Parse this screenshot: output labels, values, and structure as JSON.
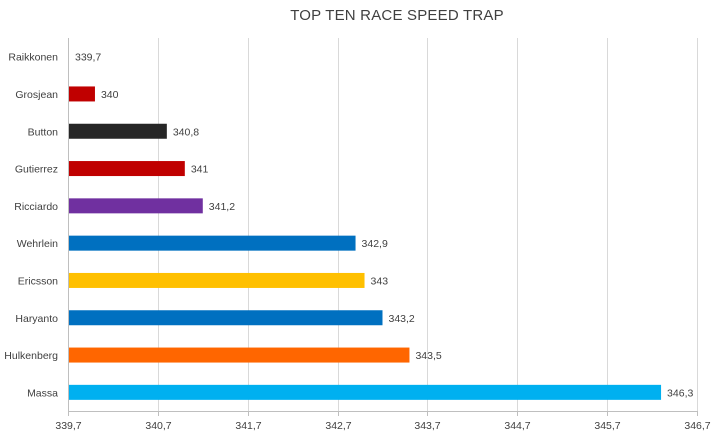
{
  "chart_data": {
    "type": "bar",
    "orientation": "horizontal",
    "title": "TOP TEN RACE SPEED TRAP",
    "xlabel": "",
    "ylabel": "",
    "categories": [
      "Raikkonen",
      "Grosjean",
      "Button",
      "Gutierrez",
      "Ricciardo",
      "Wehrlein",
      "Ericsson",
      "Haryanto",
      "Hulkenberg",
      "Massa"
    ],
    "values": [
      339.7,
      340,
      340.8,
      341,
      341.2,
      342.9,
      343,
      343.2,
      343.5,
      346.3
    ],
    "value_labels": [
      "339,7",
      "340",
      "340,8",
      "341",
      "341,2",
      "342,9",
      "343",
      "343,2",
      "343,5",
      "346,3"
    ],
    "bar_colors": [
      "#c00000",
      "#c00000",
      "#262626",
      "#c00000",
      "#7030a0",
      "#0070c0",
      "#ffc000",
      "#0070c0",
      "#ff6600",
      "#00b0f0"
    ],
    "xlim": [
      339.7,
      346.7
    ],
    "x_ticks": [
      339.7,
      340.7,
      341.7,
      342.7,
      343.7,
      344.7,
      345.7,
      346.7
    ],
    "x_tick_labels": [
      "339,7",
      "340,7",
      "341,7",
      "342,7",
      "343,7",
      "344,7",
      "345,7",
      "346,7"
    ],
    "grid": true,
    "legend": "none"
  }
}
